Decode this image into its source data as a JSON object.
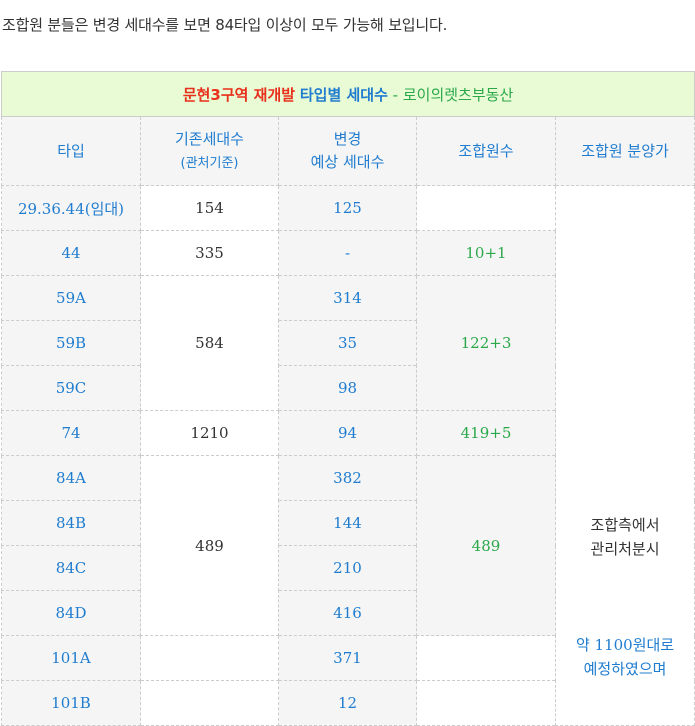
{
  "intro": "조합원 분들은 변경 세대수를 보면 84타입 이상이 모두 가능해 보입니다.",
  "title": {
    "part_red": "문현3구역 재개발",
    "part_blue": "타입별 세대수",
    "part_green": " - 로이의렛츠부동산"
  },
  "headers": {
    "type": "타입",
    "base_line1": "기존세대수",
    "base_line2": "(관처기준)",
    "est_line1": "변경",
    "est_line2": "예상 세대수",
    "members": "조합원수",
    "price": "조합원 분양가"
  },
  "rows": [
    {
      "type": "29.36.44(임대)",
      "base": "154",
      "est": "125"
    },
    {
      "type": "44",
      "base": "335",
      "est": "-"
    },
    {
      "type": "59A",
      "base": "584",
      "est": "314"
    },
    {
      "type": "59B",
      "base": "",
      "est": "35"
    },
    {
      "type": "59C",
      "base": "",
      "est": "98"
    },
    {
      "type": "74",
      "base": "1210",
      "est": "94"
    },
    {
      "type": "84A",
      "base": "489",
      "est": "382"
    },
    {
      "type": "84B",
      "base": "",
      "est": "144"
    },
    {
      "type": "84C",
      "base": "",
      "est": "210"
    },
    {
      "type": "84D",
      "base": "",
      "est": "416"
    },
    {
      "type": "101A",
      "base": "",
      "est": "371"
    },
    {
      "type": "101B",
      "base": "",
      "est": "12"
    }
  ],
  "members": {
    "g44": "10+1",
    "g59": "122+3",
    "g74": "419+5",
    "g84": "489"
  },
  "price": {
    "line1": "조합측에서",
    "line2": "관리처분시",
    "line3": "약 1100원대로",
    "line4": "예정하였으며"
  },
  "colors": {
    "title_bg": "#e9fbd4",
    "header_bg": "#f5f5f5",
    "accent_blue": "#1f7ccf",
    "accent_green": "#2aa84a",
    "accent_red": "#e8301c"
  }
}
